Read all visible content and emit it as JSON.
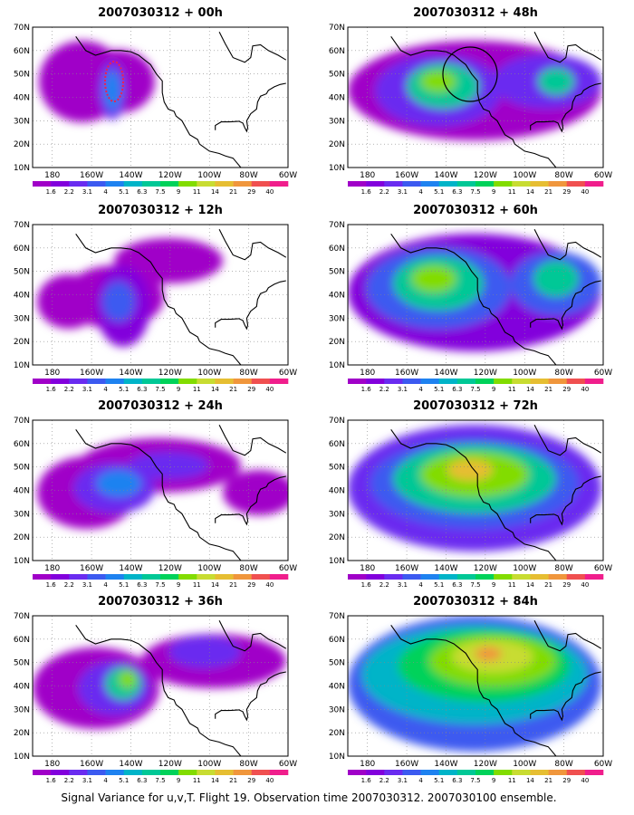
{
  "panels": [
    {
      "title": "2007030312 + 00h",
      "lead": 0
    },
    {
      "title": "2007030312 + 48h",
      "lead": 48
    },
    {
      "title": "2007030312 + 12h",
      "lead": 12
    },
    {
      "title": "2007030312 + 60h",
      "lead": 60
    },
    {
      "title": "2007030312 + 24h",
      "lead": 24
    },
    {
      "title": "2007030312 + 72h",
      "lead": 72
    },
    {
      "title": "2007030312 + 36h",
      "lead": 36
    },
    {
      "title": "2007030312 + 84h",
      "lead": 84
    }
  ],
  "lat_labels": [
    "70N",
    "60N",
    "50N",
    "40N",
    "30N",
    "20N",
    "10N"
  ],
  "lon_labels": [
    "180",
    "160W",
    "140W",
    "120W",
    "100W",
    "80W",
    "60W"
  ],
  "colorbar": {
    "labels": [
      "1.6",
      "2.2",
      "3.1",
      "4",
      "5.1",
      "6.3",
      "7.5",
      "9",
      "11",
      "14",
      "21",
      "29",
      "40"
    ],
    "colors": [
      "#a000c8",
      "#8200dc",
      "#6a2cf0",
      "#3c5af0",
      "#1e82f0",
      "#00b4c8",
      "#00c896",
      "#00d25a",
      "#82dc00",
      "#c8dc32",
      "#e6be32",
      "#f0963c",
      "#f05050",
      "#f01e8c"
    ]
  },
  "caption": "Signal Variance for u,v,T. Flight 19. Observation time 2007030312. 2007030100 ensemble."
}
